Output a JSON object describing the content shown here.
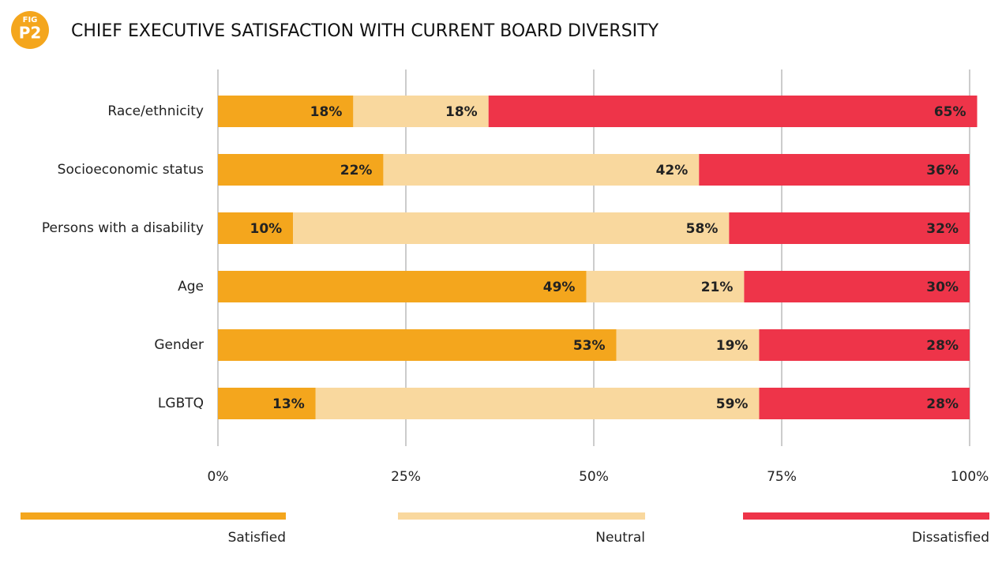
{
  "chart_data": {
    "type": "stacked_bar_horizontal",
    "title": "CHIEF EXECUTIVE SATISFACTION WITH CURRENT BOARD DIVERSITY",
    "figure_label": {
      "top": "FIG",
      "main": "P2"
    },
    "categories": [
      "Race/ethnicity",
      "Socioeconomic status",
      "Persons with a disability",
      "Age",
      "Gender",
      "LGBTQ"
    ],
    "series": [
      {
        "name": "Satisfied",
        "color": "#f4a61d",
        "values": [
          18,
          22,
          10,
          49,
          53,
          13
        ],
        "value_labels": [
          "18%",
          "22%",
          "10%",
          "49%",
          "53%",
          "13%"
        ]
      },
      {
        "name": "Neutral",
        "color": "#f9d89e",
        "values": [
          18,
          42,
          58,
          21,
          19,
          59
        ],
        "value_labels": [
          "18%",
          "42%",
          "58%",
          "21%",
          "19%",
          "59%"
        ]
      },
      {
        "name": "Dissatisfied",
        "color": "#ee3449",
        "values": [
          65,
          36,
          32,
          30,
          28,
          28
        ],
        "value_labels": [
          "65%",
          "36%",
          "32%",
          "30%",
          "28%",
          "28%"
        ]
      }
    ],
    "xlim": [
      0,
      100
    ],
    "xticks": [
      {
        "value": 0,
        "label": "0%"
      },
      {
        "value": 25,
        "label": "25%"
      },
      {
        "value": 50,
        "label": "50%"
      },
      {
        "value": 75,
        "label": "75%"
      },
      {
        "value": 100,
        "label": "100%"
      }
    ],
    "grid": true
  }
}
